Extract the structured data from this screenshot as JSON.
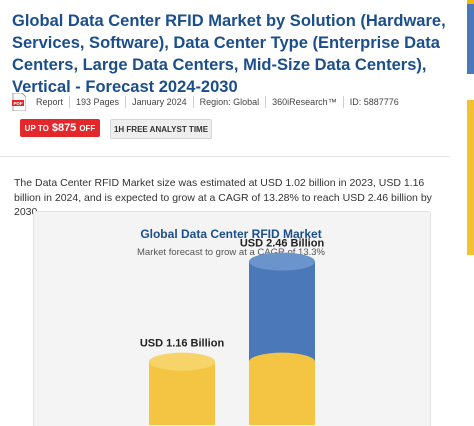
{
  "report": {
    "title": "Global Data Center RFID Market by Solution (Hardware, Services, Software), Data Center Type (Enterprise Data Centers, Large Data Centers, Mid-Size Data Centers), Vertical - Forecast 2024-2030",
    "meta": {
      "pdf_icon_label": "PDF",
      "type": "Report",
      "pages": "193 Pages",
      "date": "January 2024",
      "region": "Region: Global",
      "publisher": "360iResearch™",
      "id": "ID: 5887776"
    },
    "discount": {
      "prefix": "UP TO",
      "price": "$875",
      "suffix": "OFF"
    },
    "analyst_button": "1H FREE ANALYST TIME",
    "summary": "The Data Center RFID Market size was estimated at USD 1.02 billion in 2023, USD 1.16 billion in 2024, and is expected to grow at a CAGR of 13.28% to reach USD 2.46 billion by 2030."
  },
  "colors": {
    "title_blue": "#1b4e8c",
    "accent_red": "#e4272b",
    "bar_yellow": "#f4c542",
    "bar_blue": "#4a78b8"
  },
  "chart_data": {
    "type": "bar",
    "title": "Global Data Center RFID Market",
    "subtitle": "Market forecast to grow at a CAGR of 13.3%",
    "series": [
      {
        "label": "USD 1.16 Billion",
        "value": 1.16
      },
      {
        "label": "USD 2.46 Billion",
        "value": 2.46,
        "base_value": 1.16
      }
    ]
  }
}
